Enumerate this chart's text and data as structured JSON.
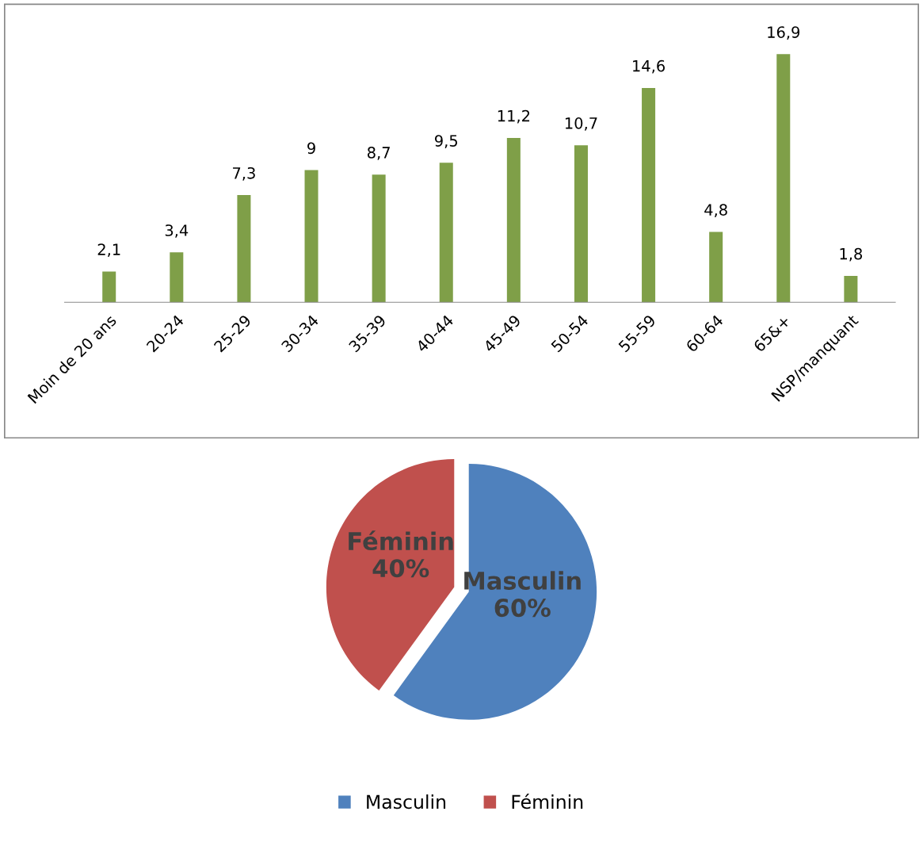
{
  "chart_data": [
    {
      "type": "bar",
      "categories": [
        "Moin de 20 ans",
        "20-24",
        "25-29",
        "30-34",
        "35-39",
        "40-44",
        "45-49",
        "50-54",
        "55-59",
        "60-64",
        "65&+",
        "NSP/manquant"
      ],
      "values": [
        2.1,
        3.4,
        7.3,
        9,
        8.7,
        9.5,
        11.2,
        10.7,
        14.6,
        4.8,
        16.9,
        1.8
      ],
      "value_labels": [
        "2,1",
        "3,4",
        "7,3",
        "9",
        "8,7",
        "9,5",
        "11,2",
        "10,7",
        "14,6",
        "4,8",
        "16,9",
        "1,8"
      ],
      "color": "#7f9f48",
      "grid": false,
      "tick_labels": "x",
      "legend": false
    },
    {
      "type": "pie",
      "categories": [
        "Masculin",
        "Féminin"
      ],
      "values": [
        60,
        40
      ],
      "value_labels": [
        "60%",
        "40%"
      ],
      "colors": [
        "#4f81bd",
        "#c0504d"
      ],
      "legend": "bottom"
    }
  ]
}
